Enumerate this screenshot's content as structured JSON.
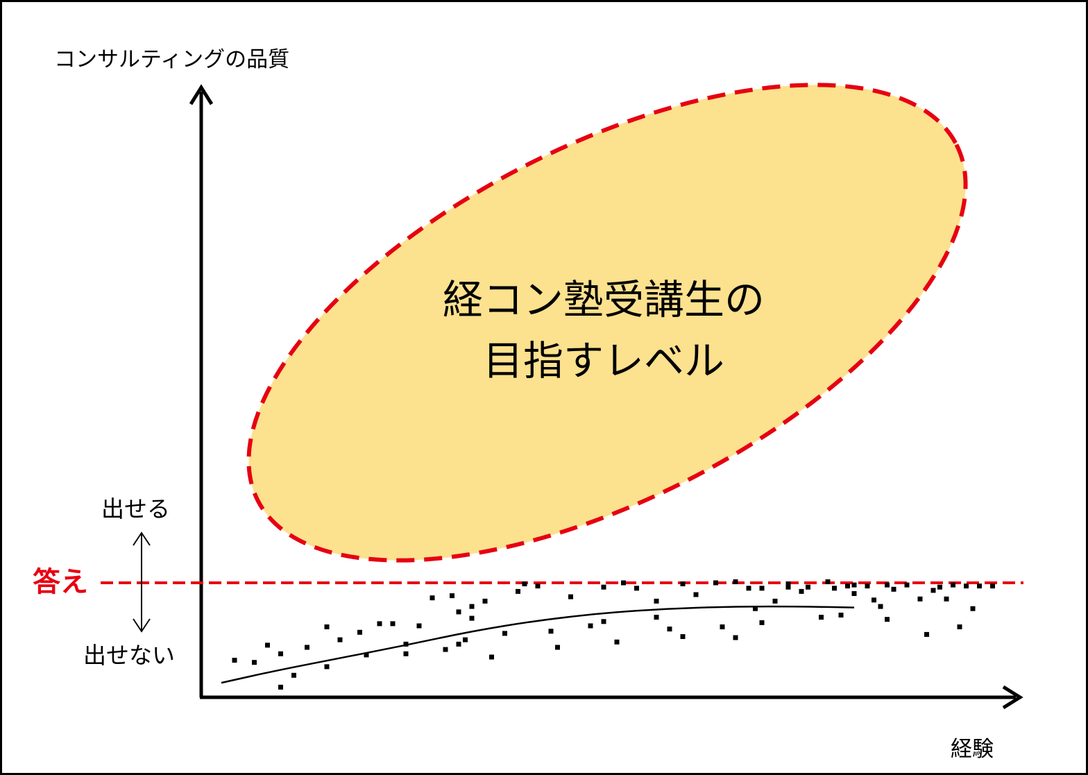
{
  "labels": {
    "y_axis": "コンサルティングの品質",
    "x_axis": "経験",
    "can_give": "出せる",
    "cannot_give": "出せない",
    "answer": "答え",
    "target_line1": "経コン塾受講生の",
    "target_line2": "目指すレベル"
  },
  "colors": {
    "ellipse_fill": "#FCE18E",
    "dashed_red": "#E60012",
    "answer_text": "#E60012",
    "axis": "#000000"
  },
  "chart_data": {
    "type": "scatter",
    "x_label": "経験",
    "y_label": "コンサルティングの品質",
    "threshold": {
      "label": "答え",
      "y": 0.83
    },
    "trend_curve": [
      [
        0.02,
        0.07
      ],
      [
        0.1,
        0.18
      ],
      [
        0.2,
        0.3
      ],
      [
        0.3,
        0.42
      ],
      [
        0.4,
        0.55
      ],
      [
        0.5,
        0.65
      ],
      [
        0.6,
        0.72
      ],
      [
        0.7,
        0.76
      ],
      [
        0.8,
        0.78
      ],
      [
        0.9,
        0.78
      ],
      [
        0.98,
        0.77
      ]
    ],
    "points": [
      [
        0.04,
        0.28
      ],
      [
        0.07,
        0.26
      ],
      [
        0.09,
        0.42
      ],
      [
        0.11,
        0.34
      ],
      [
        0.11,
        0.03
      ],
      [
        0.13,
        0.14
      ],
      [
        0.15,
        0.4
      ],
      [
        0.18,
        0.22
      ],
      [
        0.18,
        0.59
      ],
      [
        0.2,
        0.47
      ],
      [
        0.23,
        0.54
      ],
      [
        0.24,
        0.33
      ],
      [
        0.26,
        0.62
      ],
      [
        0.28,
        0.62
      ],
      [
        0.3,
        0.43
      ],
      [
        0.3,
        0.34
      ],
      [
        0.32,
        0.6
      ],
      [
        0.34,
        0.86
      ],
      [
        0.36,
        0.38
      ],
      [
        0.37,
        0.88
      ],
      [
        0.38,
        0.73
      ],
      [
        0.38,
        0.43
      ],
      [
        0.39,
        0.47
      ],
      [
        0.4,
        0.67
      ],
      [
        0.4,
        0.78
      ],
      [
        0.42,
        0.83
      ],
      [
        0.43,
        0.31
      ],
      [
        0.45,
        0.53
      ],
      [
        0.47,
        0.92
      ],
      [
        0.48,
        0.99
      ],
      [
        0.5,
        0.97
      ],
      [
        0.52,
        0.55
      ],
      [
        0.53,
        0.4
      ],
      [
        0.55,
        0.87
      ],
      [
        0.58,
        0.6
      ],
      [
        0.6,
        0.96
      ],
      [
        0.6,
        0.64
      ],
      [
        0.62,
        0.45
      ],
      [
        0.63,
        1.0
      ],
      [
        0.65,
        0.95
      ],
      [
        0.68,
        0.83
      ],
      [
        0.68,
        0.68
      ],
      [
        0.7,
        0.57
      ],
      [
        0.72,
        0.99
      ],
      [
        0.72,
        0.5
      ],
      [
        0.74,
        0.89
      ],
      [
        0.77,
        1.0
      ],
      [
        0.78,
        0.59
      ],
      [
        0.8,
        1.01
      ],
      [
        0.8,
        0.49
      ],
      [
        0.82,
        0.95
      ],
      [
        0.83,
        0.76
      ],
      [
        0.84,
        0.95
      ],
      [
        0.84,
        0.63
      ],
      [
        0.86,
        0.83
      ],
      [
        0.88,
        0.96
      ],
      [
        0.88,
        0.99
      ],
      [
        0.9,
        0.92
      ],
      [
        0.91,
        0.96
      ],
      [
        0.93,
        0.68
      ],
      [
        0.94,
        1.01
      ],
      [
        0.95,
        0.95
      ],
      [
        0.96,
        0.7
      ],
      [
        0.97,
        0.97
      ],
      [
        0.98,
        0.98
      ],
      [
        0.98,
        0.9
      ],
      [
        1.0,
        0.97
      ],
      [
        1.01,
        0.84
      ],
      [
        1.02,
        0.78
      ],
      [
        1.03,
        0.98
      ],
      [
        1.03,
        0.66
      ],
      [
        1.04,
        0.94
      ],
      [
        1.06,
        0.98
      ],
      [
        1.08,
        0.85
      ],
      [
        1.09,
        0.52
      ],
      [
        1.1,
        0.93
      ],
      [
        1.11,
        0.96
      ],
      [
        1.12,
        0.85
      ],
      [
        1.13,
        0.98
      ],
      [
        1.14,
        0.59
      ],
      [
        1.15,
        0.97
      ],
      [
        1.16,
        0.76
      ],
      [
        1.17,
        0.97
      ],
      [
        1.19,
        0.97
      ]
    ]
  }
}
